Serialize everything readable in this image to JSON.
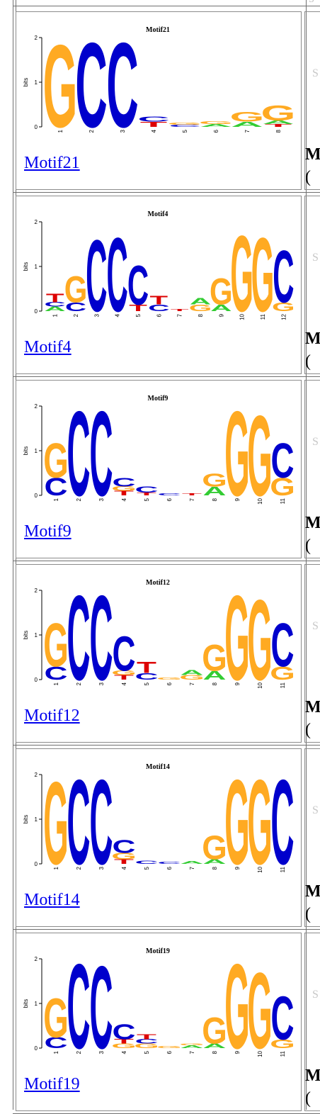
{
  "colors": {
    "A": "#33cc33",
    "C": "#0000cc",
    "G": "#ffaa22",
    "T": "#dd0000",
    "link": "#0000ee"
  },
  "top_right_glyph": "S",
  "motifs": [
    {
      "name": "Motif21",
      "link_text": "Motif21",
      "logo_title": "Motif21",
      "y_axis_label": "bits",
      "y_ticks": [
        "2",
        "1",
        "0"
      ],
      "side_glyph": "S",
      "truncated_text": "M",
      "truncated_paren": "(",
      "positions": [
        {
          "label": "1",
          "letters": [
            {
              "b": "G",
              "h": 1.9
            }
          ]
        },
        {
          "label": "2",
          "letters": [
            {
              "b": "C",
              "h": 1.95
            }
          ]
        },
        {
          "label": "3",
          "letters": [
            {
              "b": "C",
              "h": 1.95
            }
          ]
        },
        {
          "label": "4",
          "letters": [
            {
              "b": "T",
              "h": 0.12
            },
            {
              "b": "C",
              "h": 0.12
            }
          ]
        },
        {
          "label": "5",
          "letters": [
            {
              "b": "C",
              "h": 0.05
            },
            {
              "b": "G",
              "h": 0.05
            }
          ]
        },
        {
          "label": "6",
          "letters": [
            {
              "b": "A",
              "h": 0.06
            },
            {
              "b": "G",
              "h": 0.06
            }
          ]
        },
        {
          "label": "7",
          "letters": [
            {
              "b": "A",
              "h": 0.12
            },
            {
              "b": "G",
              "h": 0.22
            }
          ]
        },
        {
          "label": "8",
          "letters": [
            {
              "b": "T",
              "h": 0.06
            },
            {
              "b": "A",
              "h": 0.08
            },
            {
              "b": "G",
              "h": 0.35
            }
          ]
        }
      ]
    },
    {
      "name": "Motif4",
      "link_text": "Motif4",
      "logo_title": "Motif4",
      "y_axis_label": "bits",
      "y_ticks": [
        "2",
        "1",
        "0"
      ],
      "side_glyph": "S",
      "truncated_text": "M",
      "truncated_paren": "(",
      "positions": [
        {
          "label": "1",
          "letters": [
            {
              "b": "A",
              "h": 0.1
            },
            {
              "b": "C",
              "h": 0.1
            },
            {
              "b": "T",
              "h": 0.2
            }
          ]
        },
        {
          "label": "2",
          "letters": [
            {
              "b": "C",
              "h": 0.2
            },
            {
              "b": "G",
              "h": 0.6
            }
          ]
        },
        {
          "label": "3",
          "letters": [
            {
              "b": "C",
              "h": 1.65
            }
          ]
        },
        {
          "label": "4",
          "letters": [
            {
              "b": "C",
              "h": 1.7
            }
          ]
        },
        {
          "label": "5",
          "letters": [
            {
              "b": "T",
              "h": 0.15
            },
            {
              "b": "C",
              "h": 0.9
            }
          ]
        },
        {
          "label": "6",
          "letters": [
            {
              "b": "C",
              "h": 0.15
            },
            {
              "b": "T",
              "h": 0.2
            }
          ]
        },
        {
          "label": "7",
          "letters": [
            {
              "b": "T",
              "h": 0.05
            }
          ]
        },
        {
          "label": "8",
          "letters": [
            {
              "b": "G",
              "h": 0.15
            },
            {
              "b": "A",
              "h": 0.15
            }
          ]
        },
        {
          "label": "9",
          "letters": [
            {
              "b": "A",
              "h": 0.15
            },
            {
              "b": "G",
              "h": 0.6
            }
          ]
        },
        {
          "label": "10",
          "letters": [
            {
              "b": "G",
              "h": 1.75
            }
          ]
        },
        {
          "label": "11",
          "letters": [
            {
              "b": "G",
              "h": 1.7
            }
          ]
        },
        {
          "label": "12",
          "letters": [
            {
              "b": "G",
              "h": 0.2
            },
            {
              "b": "C",
              "h": 1.2
            }
          ]
        }
      ]
    },
    {
      "name": "Motif9",
      "link_text": "Motif9",
      "logo_title": "Motif9",
      "y_axis_label": "bits",
      "y_ticks": [
        "2",
        "1",
        "0"
      ],
      "side_glyph": "S",
      "truncated_text": "M",
      "truncated_paren": "(",
      "positions": [
        {
          "label": "1",
          "letters": [
            {
              "b": "C",
              "h": 0.4
            },
            {
              "b": "G",
              "h": 0.8
            }
          ]
        },
        {
          "label": "2",
          "letters": [
            {
              "b": "C",
              "h": 1.95
            }
          ]
        },
        {
          "label": "3",
          "letters": [
            {
              "b": "C",
              "h": 1.95
            }
          ]
        },
        {
          "label": "4",
          "letters": [
            {
              "b": "T",
              "h": 0.1
            },
            {
              "b": "G",
              "h": 0.1
            },
            {
              "b": "C",
              "h": 0.2
            }
          ]
        },
        {
          "label": "5",
          "letters": [
            {
              "b": "T",
              "h": 0.06
            },
            {
              "b": "C",
              "h": 0.14
            }
          ]
        },
        {
          "label": "6",
          "letters": [
            {
              "b": "C",
              "h": 0.05
            }
          ]
        },
        {
          "label": "7",
          "letters": [
            {
              "b": "T",
              "h": 0.05
            }
          ]
        },
        {
          "label": "8",
          "letters": [
            {
              "b": "A",
              "h": 0.2
            },
            {
              "b": "G",
              "h": 0.3
            }
          ]
        },
        {
          "label": "9",
          "letters": [
            {
              "b": "G",
              "h": 1.95
            }
          ]
        },
        {
          "label": "10",
          "letters": [
            {
              "b": "G",
              "h": 1.85
            }
          ]
        },
        {
          "label": "11",
          "letters": [
            {
              "b": "G",
              "h": 0.4
            },
            {
              "b": "C",
              "h": 0.8
            }
          ]
        }
      ]
    },
    {
      "name": "Motif12",
      "link_text": "Motif12",
      "logo_title": "Motif12",
      "y_axis_label": "bits",
      "y_ticks": [
        "2",
        "1",
        "0"
      ],
      "side_glyph": "S",
      "truncated_text": "M",
      "truncated_paren": "(",
      "positions": [
        {
          "label": "1",
          "letters": [
            {
              "b": "C",
              "h": 0.3
            },
            {
              "b": "G",
              "h": 1.0
            }
          ]
        },
        {
          "label": "2",
          "letters": [
            {
              "b": "C",
              "h": 1.95
            }
          ]
        },
        {
          "label": "3",
          "letters": [
            {
              "b": "C",
              "h": 1.95
            }
          ]
        },
        {
          "label": "4",
          "letters": [
            {
              "b": "T",
              "h": 0.1
            },
            {
              "b": "G",
              "h": 0.1
            },
            {
              "b": "C",
              "h": 0.8
            }
          ]
        },
        {
          "label": "5",
          "letters": [
            {
              "b": "C",
              "h": 0.15
            },
            {
              "b": "T",
              "h": 0.25
            }
          ]
        },
        {
          "label": "6",
          "letters": [
            {
              "b": "G",
              "h": 0.05
            }
          ]
        },
        {
          "label": "7",
          "letters": [
            {
              "b": "G",
              "h": 0.1
            },
            {
              "b": "A",
              "h": 0.12
            }
          ]
        },
        {
          "label": "8",
          "letters": [
            {
              "b": "A",
              "h": 0.2
            },
            {
              "b": "G",
              "h": 0.6
            }
          ]
        },
        {
          "label": "9",
          "letters": [
            {
              "b": "G",
              "h": 1.95
            }
          ]
        },
        {
          "label": "10",
          "letters": [
            {
              "b": "G",
              "h": 1.85
            }
          ]
        },
        {
          "label": "11",
          "letters": [
            {
              "b": "G",
              "h": 0.3
            },
            {
              "b": "C",
              "h": 1.0
            }
          ]
        }
      ]
    },
    {
      "name": "Motif14",
      "link_text": "Motif14",
      "logo_title": "Motif14",
      "y_axis_label": "bits",
      "y_ticks": [
        "2",
        "1",
        "0"
      ],
      "side_glyph": "S",
      "truncated_text": "M",
      "truncated_paren": "(",
      "positions": [
        {
          "label": "1",
          "letters": [
            {
              "b": "G",
              "h": 1.9
            }
          ]
        },
        {
          "label": "2",
          "letters": [
            {
              "b": "C",
              "h": 1.95
            }
          ]
        },
        {
          "label": "3",
          "letters": [
            {
              "b": "C",
              "h": 1.95
            }
          ]
        },
        {
          "label": "4",
          "letters": [
            {
              "b": "T",
              "h": 0.1
            },
            {
              "b": "G",
              "h": 0.15
            },
            {
              "b": "C",
              "h": 0.3
            }
          ]
        },
        {
          "label": "5",
          "letters": [
            {
              "b": "C",
              "h": 0.07
            }
          ]
        },
        {
          "label": "6",
          "letters": [
            {
              "b": "C",
              "h": 0.05
            }
          ]
        },
        {
          "label": "7",
          "letters": [
            {
              "b": "A",
              "h": 0.06
            }
          ]
        },
        {
          "label": "8",
          "letters": [
            {
              "b": "A",
              "h": 0.1
            },
            {
              "b": "G",
              "h": 0.55
            }
          ]
        },
        {
          "label": "9",
          "letters": [
            {
              "b": "G",
              "h": 1.95
            }
          ]
        },
        {
          "label": "10",
          "letters": [
            {
              "b": "G",
              "h": 1.95
            }
          ]
        },
        {
          "label": "11",
          "letters": [
            {
              "b": "C",
              "h": 1.95
            }
          ]
        }
      ]
    },
    {
      "name": "Motif19",
      "link_text": "Motif19",
      "logo_title": "Motif19",
      "y_axis_label": "bits",
      "y_ticks": [
        "2",
        "1",
        "0"
      ],
      "side_glyph": "S",
      "truncated_text": "M",
      "truncated_paren": "(",
      "positions": [
        {
          "label": "1",
          "letters": [
            {
              "b": "C",
              "h": 0.25
            },
            {
              "b": "G",
              "h": 0.9
            }
          ]
        },
        {
          "label": "2",
          "letters": [
            {
              "b": "C",
              "h": 1.95
            }
          ]
        },
        {
          "label": "3",
          "letters": [
            {
              "b": "C",
              "h": 1.9
            }
          ]
        },
        {
          "label": "4",
          "letters": [
            {
              "b": "G",
              "h": 0.1
            },
            {
              "b": "T",
              "h": 0.1
            },
            {
              "b": "C",
              "h": 0.35
            }
          ]
        },
        {
          "label": "5",
          "letters": [
            {
              "b": "G",
              "h": 0.1
            },
            {
              "b": "C",
              "h": 0.1
            },
            {
              "b": "T",
              "h": 0.12
            }
          ]
        },
        {
          "label": "6",
          "letters": [
            {
              "b": "G",
              "h": 0.05
            }
          ]
        },
        {
          "label": "7",
          "letters": [
            {
              "b": "A",
              "h": 0.06
            },
            {
              "b": "G",
              "h": 0.04
            }
          ]
        },
        {
          "label": "8",
          "letters": [
            {
              "b": "A",
              "h": 0.1
            },
            {
              "b": "G",
              "h": 0.6
            }
          ]
        },
        {
          "label": "9",
          "letters": [
            {
              "b": "G",
              "h": 1.95
            }
          ]
        },
        {
          "label": "10",
          "letters": [
            {
              "b": "G",
              "h": 1.75
            }
          ]
        },
        {
          "label": "11",
          "letters": [
            {
              "b": "G",
              "h": 0.2
            },
            {
              "b": "C",
              "h": 1.0
            }
          ]
        }
      ]
    }
  ]
}
